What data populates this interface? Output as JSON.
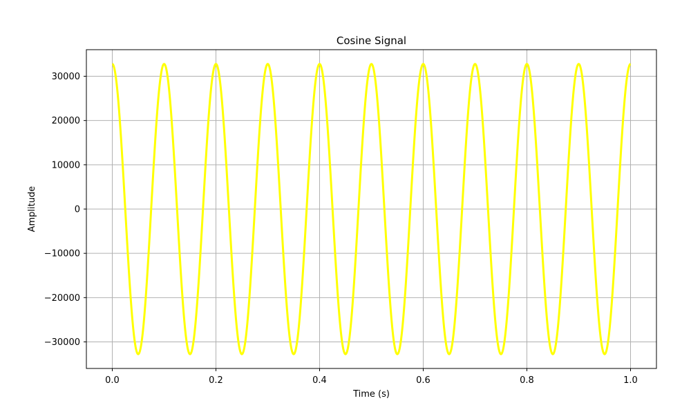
{
  "chart_data": {
    "type": "line",
    "title": "Cosine Signal",
    "xlabel": "Time (s)",
    "ylabel": "Amplitude",
    "xlim": [
      -0.05,
      1.05
    ],
    "ylim": [
      -36000,
      36000
    ],
    "xticks": [
      0.0,
      0.2,
      0.4,
      0.6,
      0.8,
      1.0
    ],
    "xtick_labels": [
      "0.0",
      "0.2",
      "0.4",
      "0.6",
      "0.8",
      "1.0"
    ],
    "yticks": [
      30000,
      20000,
      10000,
      0,
      -10000,
      -20000,
      -30000
    ],
    "ytick_labels": [
      "30000",
      "20000",
      "10000",
      "0",
      "−10000",
      "−20000",
      "−30000"
    ],
    "grid": true,
    "series": [
      {
        "color": "#ffff00",
        "function": "cosine",
        "amplitude": 32767,
        "frequency_hz": 10,
        "x_start": 0.0,
        "x_end": 1.0
      }
    ]
  }
}
